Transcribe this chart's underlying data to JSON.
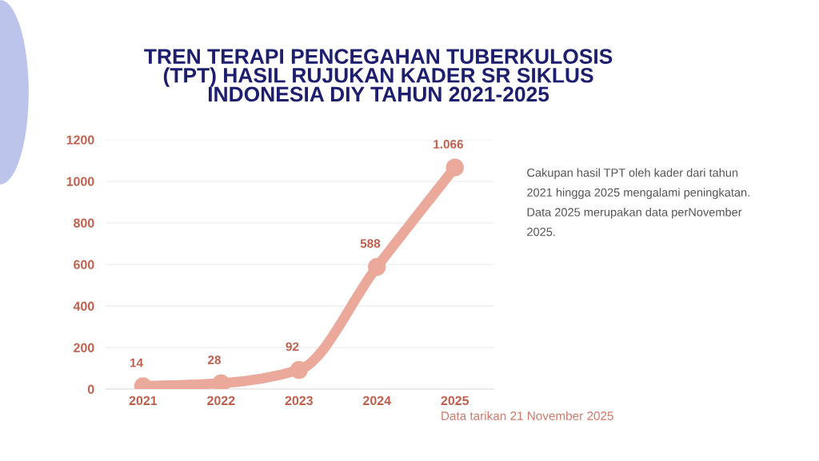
{
  "chart_data": {
    "type": "line",
    "title": "TREN TERAPI PENCEGAHAN TUBERKULOSIS (TPT) HASIL RUJUKAN KADER SR SIKLUS INDONESIA DIY TAHUN 2021-2025",
    "categories": [
      "2021",
      "2022",
      "2023",
      "2024",
      "2025"
    ],
    "series": [
      {
        "color": "#eaa99a",
        "values": [
          14,
          28,
          92,
          588,
          1066
        ],
        "value_labels": [
          "14",
          "28",
          "92",
          "588",
          "1.066"
        ]
      }
    ],
    "ylim": [
      0,
      1200
    ],
    "yticks": [
      0,
      200,
      400,
      600,
      800,
      1000,
      1200
    ],
    "grid": "y",
    "marker": "circle",
    "line_style": "solid",
    "annotations": [
      "Cakupan hasil TPT oleh kader dari tahun 2021 hingga 2025 mengalami peningkatan. Data 2025 merupakan data perNovember 2025.",
      "Data tarikan 21 November 2025"
    ]
  }
}
